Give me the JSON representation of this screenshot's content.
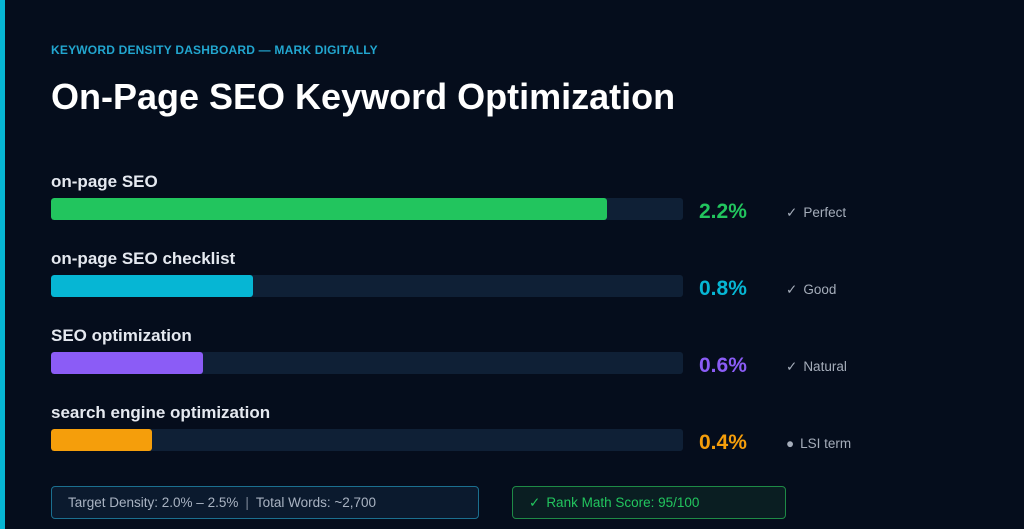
{
  "header": {
    "subtitle": "KEYWORD DENSITY DASHBOARD — MARK DIGITALLY",
    "title": "On-Page SEO Keyword Optimization"
  },
  "colors": {
    "accent": "#06b6d4",
    "background": "#050d1c",
    "track": "#0f2036"
  },
  "chart_data": {
    "type": "bar",
    "orientation": "horizontal",
    "categories": [
      "on-page SEO",
      "on-page SEO checklist",
      "SEO optimization",
      "search engine optimization"
    ],
    "values": [
      2.2,
      0.8,
      0.6,
      0.4
    ],
    "value_labels": [
      "2.2%",
      "0.8%",
      "0.6%",
      "0.4%"
    ],
    "statuses": [
      {
        "icon": "check-icon",
        "symbol": "✓",
        "text": "Perfect"
      },
      {
        "icon": "check-icon",
        "symbol": "✓",
        "text": "Good"
      },
      {
        "icon": "check-icon",
        "symbol": "✓",
        "text": "Natural"
      },
      {
        "icon": "dot-icon",
        "symbol": "●",
        "text": "LSI term"
      }
    ],
    "colors": [
      "#22c55e",
      "#06b6d4",
      "#8b5cf6",
      "#f59e0b"
    ],
    "xlim": [
      0,
      2.5
    ],
    "grid": false,
    "legend": "none"
  },
  "footer": {
    "target_density": "Target Density: 2.0% – 2.5%",
    "separator": "|",
    "total_words": "Total Words: ~2,700",
    "rank_check": "✓",
    "rank_score": "Rank Math Score: 95/100"
  }
}
